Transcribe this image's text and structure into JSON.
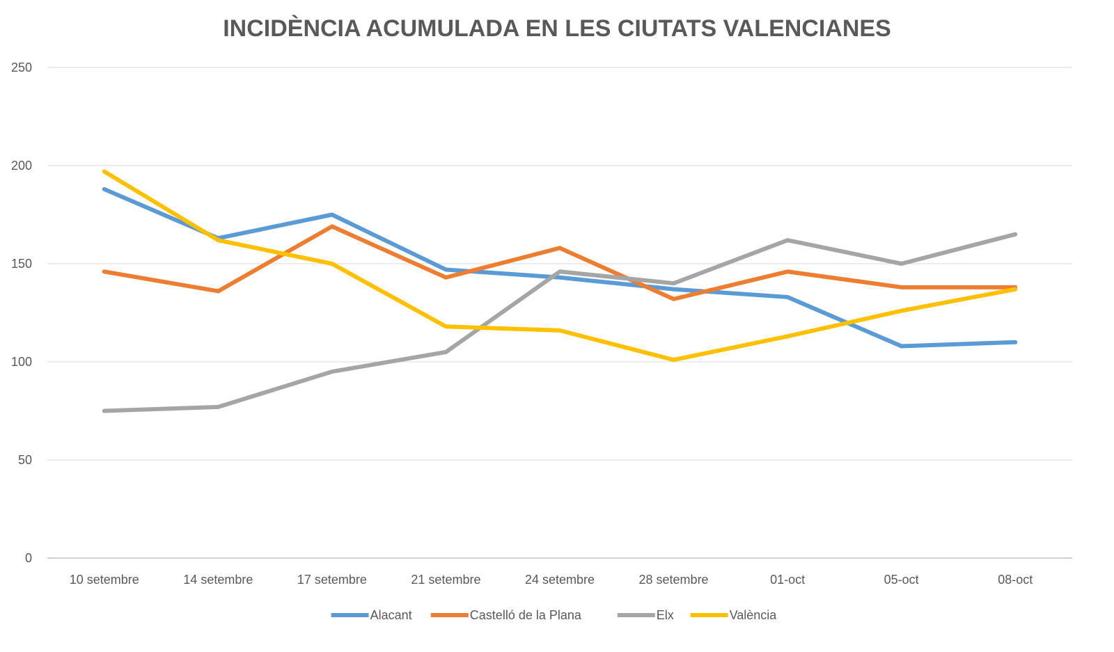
{
  "chart_data": {
    "type": "line",
    "title": "INCIDÈNCIA ACUMULADA EN LES CIUTATS VALENCIANES",
    "xlabel": "",
    "ylabel": "",
    "categories": [
      "10 setembre",
      "14 setembre",
      "17 setembre",
      "21 setembre",
      "24 setembre",
      "28 setembre",
      "01-oct",
      "05-oct",
      "08-oct"
    ],
    "ylim": [
      0,
      250
    ],
    "yticks": [
      "0",
      "50",
      "100",
      "150",
      "200",
      "250"
    ],
    "grid": true,
    "legend_position": "bottom",
    "series": [
      {
        "name": "Alacant",
        "color": "#5B9BD5",
        "values": [
          188,
          163,
          175,
          147,
          143,
          137,
          133,
          108,
          110
        ]
      },
      {
        "name": "Castelló de la Plana",
        "color": "#ED7D31",
        "values": [
          146,
          136,
          169,
          143,
          158,
          132,
          146,
          138,
          138
        ]
      },
      {
        "name": "Elx",
        "color": "#A5A5A5",
        "values": [
          75,
          77,
          95,
          105,
          146,
          140,
          162,
          150,
          165
        ]
      },
      {
        "name": "València",
        "color": "#FFC000",
        "values": [
          197,
          162,
          150,
          118,
          116,
          101,
          113,
          126,
          137
        ]
      }
    ]
  }
}
